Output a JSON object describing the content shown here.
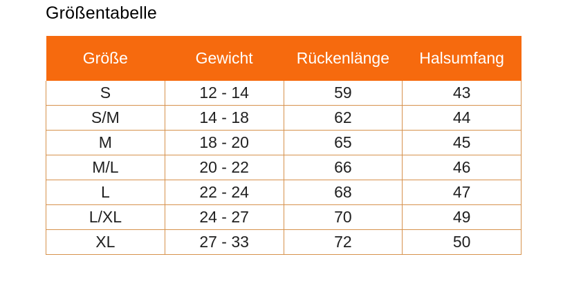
{
  "title": "Größentabelle",
  "colors": {
    "header_bg": "#F66A0E",
    "header_text": "#FFFFFF",
    "row_border": "#D6914C",
    "cell_text": "#1F1F1F",
    "title_text": "#000000",
    "page_bg": "#FFFFFF"
  },
  "table": {
    "columns": [
      "Größe",
      "Gewicht",
      "Rückenlänge",
      "Halsumfang"
    ],
    "rows": [
      [
        "S",
        "12 - 14",
        "59",
        "43"
      ],
      [
        "S/M",
        "14 - 18",
        "62",
        "44"
      ],
      [
        "M",
        "18 - 20",
        "65",
        "45"
      ],
      [
        "M/L",
        "20 - 22",
        "66",
        "46"
      ],
      [
        "L",
        "22 - 24",
        "68",
        "47"
      ],
      [
        "L/XL",
        "24 - 27",
        "70",
        "49"
      ],
      [
        "XL",
        "27 - 33",
        "72",
        "50"
      ]
    ]
  }
}
